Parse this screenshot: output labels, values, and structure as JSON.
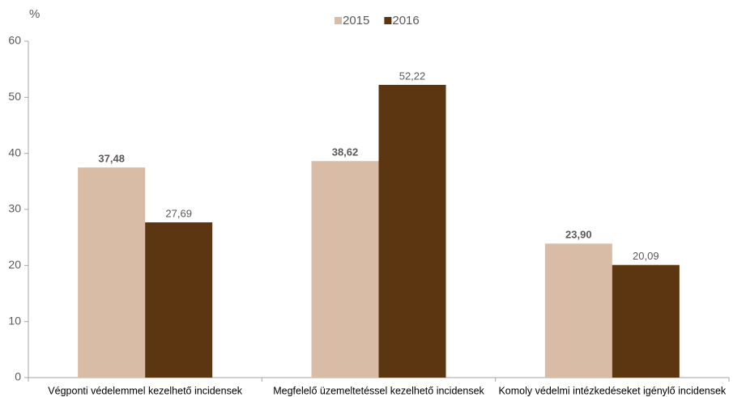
{
  "chart_data": {
    "type": "bar",
    "y_label": "%",
    "categories": [
      "Végponti védelemmel kezelhető incidensek",
      "Megfelelő üzemeltetéssel kezelhető incidensek",
      "Komoly védelmi intézkedéseket igénylő incidensek"
    ],
    "series": [
      {
        "name": "2015",
        "color": "#d9bca6",
        "values": [
          37.48,
          38.62,
          23.9
        ],
        "value_labels": [
          "37,48",
          "38,62",
          "23,90"
        ]
      },
      {
        "name": "2016",
        "color": "#5c3610",
        "values": [
          27.69,
          52.22,
          20.09
        ],
        "value_labels": [
          "27,69",
          "52,22",
          "20,09"
        ]
      }
    ],
    "ylim": [
      0,
      60
    ],
    "yticks": [
      0,
      10,
      20,
      30,
      40,
      50,
      60
    ],
    "grid": false,
    "legend": "top"
  }
}
